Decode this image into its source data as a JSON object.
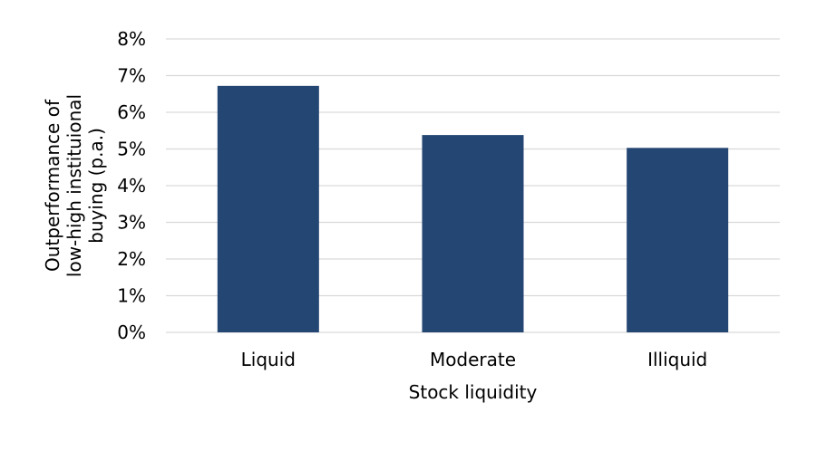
{
  "chart_data": {
    "type": "bar",
    "title": "",
    "categories": [
      "Liquid",
      "Moderate",
      "Illiquid"
    ],
    "values": [
      6.72,
      5.38,
      5.03
    ],
    "value_unit": "%",
    "xlabel": "Stock liquidity",
    "ylabel_lines": [
      "Outperformance of",
      "low-high instituional",
      "buying (p.a.)"
    ],
    "ylim": [
      0,
      8
    ],
    "yticks": [
      "0%",
      "1%",
      "2%",
      "3%",
      "4%",
      "5%",
      "6%",
      "7%",
      "8%"
    ],
    "grid": "horizontal",
    "legend": "none",
    "bar_color": "#244673",
    "grid_color": "#d9d9d9"
  }
}
